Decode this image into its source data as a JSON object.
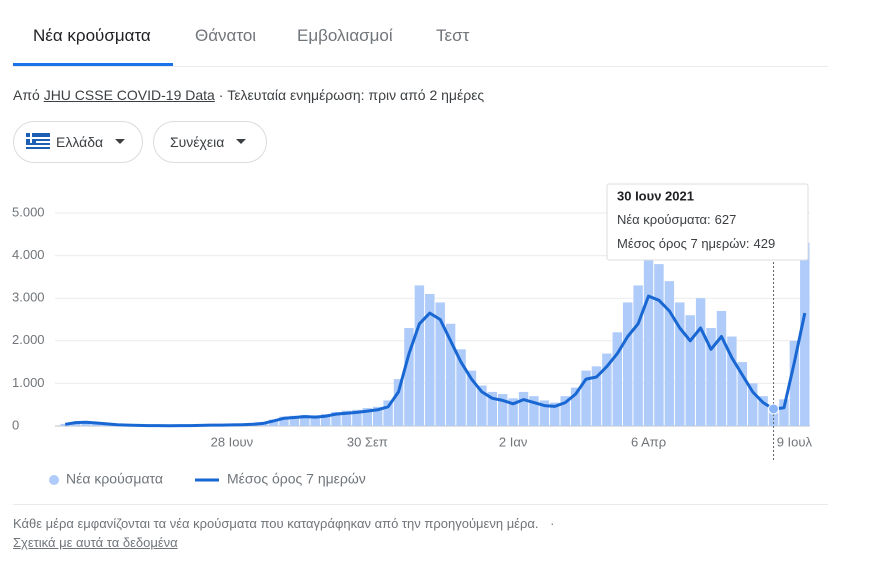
{
  "tabs": [
    "Νέα κρούσματα",
    "Θάνατοι",
    "Εμβολιασμοί",
    "Τεστ"
  ],
  "source": {
    "prefix": "Από",
    "link": "JHU CSSE COVID-19 Data",
    "suffix": "· Τελευταία ενημέρωση: πριν από 2 ημέρες"
  },
  "controls": {
    "country": "Ελλάδα",
    "more": "Συνέχεια"
  },
  "chart_data": {
    "type": "combo",
    "categories": [
      null,
      null,
      null,
      null,
      null,
      null,
      null,
      null,
      null,
      null,
      null,
      null,
      null,
      null,
      null,
      null,
      "28 Ιουν",
      null,
      null,
      null,
      null,
      null,
      null,
      null,
      null,
      null,
      null,
      null,
      null,
      "30 Σεπ",
      null,
      null,
      null,
      null,
      null,
      null,
      null,
      null,
      null,
      null,
      null,
      null,
      null,
      "2 Ιαν",
      null,
      null,
      null,
      null,
      null,
      null,
      null,
      null,
      null,
      null,
      null,
      null,
      "6 Απρ",
      null,
      null,
      null,
      null,
      null,
      null,
      null,
      null,
      null,
      null,
      null,
      null,
      null,
      "9 Ιουλ",
      null
    ],
    "series": [
      {
        "name": "Νέα κρούσματα",
        "color": "#aecbfa",
        "values": [
          50,
          90,
          100,
          80,
          60,
          40,
          25,
          20,
          15,
          12,
          10,
          12,
          12,
          18,
          25,
          25,
          30,
          35,
          50,
          80,
          150,
          220,
          240,
          260,
          250,
          280,
          330,
          360,
          380,
          420,
          450,
          600,
          1100,
          2300,
          3300,
          3100,
          2900,
          2400,
          1800,
          1300,
          950,
          800,
          750,
          650,
          800,
          700,
          600,
          550,
          700,
          900,
          1300,
          1400,
          1700,
          2200,
          2900,
          3300,
          4300,
          3800,
          3400,
          2900,
          2600,
          3000,
          2300,
          2700,
          2100,
          1500,
          1000,
          700,
          500,
          627,
          2000,
          4300
        ]
      },
      {
        "name": "Μέσος όρος 7 ημερών",
        "color": "#1967d2",
        "values": [
          40,
          80,
          90,
          70,
          50,
          30,
          20,
          15,
          10,
          10,
          8,
          10,
          10,
          15,
          20,
          20,
          25,
          30,
          40,
          60,
          120,
          180,
          200,
          220,
          210,
          230,
          280,
          300,
          320,
          350,
          380,
          450,
          800,
          1700,
          2400,
          2650,
          2500,
          2000,
          1500,
          1100,
          800,
          650,
          600,
          520,
          620,
          550,
          480,
          460,
          550,
          750,
          1100,
          1150,
          1400,
          1700,
          2100,
          2400,
          3050,
          2950,
          2700,
          2300,
          2000,
          2300,
          1800,
          2100,
          1600,
          1200,
          800,
          550,
          400,
          429,
          1500,
          2650
        ]
      }
    ],
    "ylim": [
      0,
      5000
    ],
    "yticks": [
      0,
      {
        "value": 1000,
        "label": "1.000"
      },
      {
        "value": 2000,
        "label": "2.000"
      },
      {
        "value": 3000,
        "label": "3.000"
      },
      {
        "value": 4000,
        "label": "4.000"
      },
      {
        "value": 5000,
        "label": "5.000"
      }
    ],
    "grid": true,
    "legend": "bottom-left",
    "tooltip": {
      "date": "30 Ιουν 2021",
      "rows": [
        {
          "label": "Νέα κρούσματα:",
          "value": 627
        },
        {
          "label": "Μέσος όρος 7 ημερών:",
          "value": 429
        }
      ]
    }
  },
  "footer": {
    "note": "Κάθε μέρα εμφανίζονται τα νέα κρούσματα που καταγράφηκαν από την προηγούμενη μέρα.",
    "separator": "·",
    "link": "Σχετικά με αυτά τα δεδομένα"
  }
}
